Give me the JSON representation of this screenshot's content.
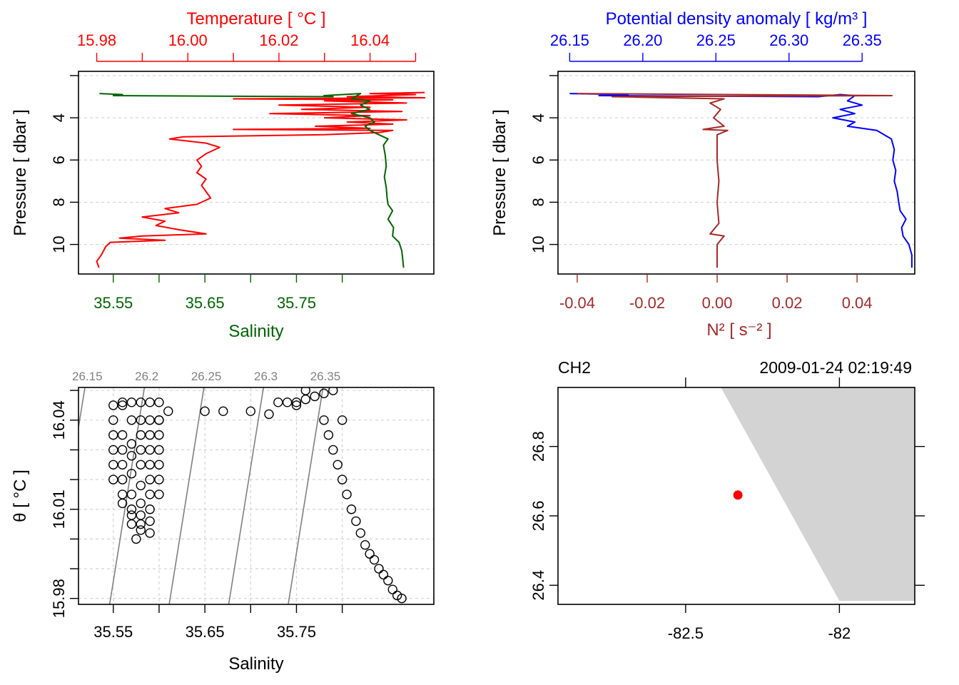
{
  "colors": {
    "temperature": "#ff0000",
    "salinity": "#006400",
    "density": "#0000ff",
    "n2": "#a52a2a",
    "point": "#ff0000",
    "land": "#d3d3d3",
    "isopycnal": "#808080",
    "grid": "#d3d3d3",
    "axis": "#000000"
  },
  "chart_data": [
    {
      "id": "temp-salinity-profile",
      "type": "line",
      "title_top": "Temperature [ °C ]",
      "xlabel_bottom": "Salinity",
      "ylabel": "Pressure [ dbar ]",
      "top_axis": {
        "range": [
          15.976,
          16.054
        ],
        "ticks": [
          15.98,
          15.99,
          16.0,
          16.01,
          16.02,
          16.03,
          16.04,
          16.05
        ],
        "tick_labels": [
          "15.98",
          "",
          "16.00",
          "",
          "16.02",
          "",
          "16.04",
          ""
        ]
      },
      "bottom_axis": {
        "range": [
          35.512,
          35.9
        ],
        "ticks": [
          35.55,
          35.6,
          35.65,
          35.7,
          35.75,
          35.8
        ],
        "tick_labels": [
          "35.55",
          "",
          "35.65",
          "",
          "35.75",
          ""
        ]
      },
      "y_axis": {
        "range": [
          11.4,
          1.8
        ],
        "ticks": [
          2,
          4,
          6,
          8,
          10
        ],
        "tick_labels": [
          "",
          "4",
          "6",
          "8",
          "10"
        ]
      },
      "series": [
        {
          "name": "Temperature",
          "axis": "top",
          "points": [
            [
              16.052,
              2.8
            ],
            [
              16.04,
              2.85
            ],
            [
              16.05,
              2.9
            ],
            [
              16.035,
              3.0
            ],
            [
              16.052,
              3.05
            ],
            [
              16.01,
              3.1
            ],
            [
              16.045,
              3.15
            ],
            [
              16.03,
              3.2
            ],
            [
              16.048,
              3.3
            ],
            [
              16.02,
              3.4
            ],
            [
              16.04,
              3.5
            ],
            [
              16.025,
              3.6
            ],
            [
              16.047,
              3.7
            ],
            [
              16.018,
              3.8
            ],
            [
              16.04,
              3.9
            ],
            [
              16.03,
              4.0
            ],
            [
              16.048,
              4.1
            ],
            [
              16.035,
              4.2
            ],
            [
              16.045,
              4.3
            ],
            [
              16.028,
              4.4
            ],
            [
              16.04,
              4.5
            ],
            [
              16.01,
              4.55
            ],
            [
              16.045,
              4.6
            ],
            [
              16.042,
              4.7
            ],
            [
              16.03,
              4.8
            ],
            [
              15.999,
              4.9
            ],
            [
              15.996,
              5.0
            ],
            [
              16.004,
              5.2
            ],
            [
              16.007,
              5.4
            ],
            [
              16.004,
              5.7
            ],
            [
              16.002,
              6.0
            ],
            [
              16.003,
              6.3
            ],
            [
              16.002,
              6.6
            ],
            [
              16.004,
              6.9
            ],
            [
              16.003,
              7.2
            ],
            [
              16.004,
              7.5
            ],
            [
              16.005,
              7.8
            ],
            [
              16.002,
              8.1
            ],
            [
              15.995,
              8.3
            ],
            [
              15.998,
              8.5
            ],
            [
              15.99,
              8.7
            ],
            [
              15.995,
              8.9
            ],
            [
              15.993,
              9.1
            ],
            [
              15.998,
              9.3
            ],
            [
              16.004,
              9.5
            ],
            [
              15.99,
              9.6
            ],
            [
              15.985,
              9.7
            ],
            [
              15.995,
              9.8
            ],
            [
              15.983,
              9.9
            ],
            [
              15.982,
              10.1
            ],
            [
              15.981,
              10.5
            ],
            [
              15.98,
              10.8
            ],
            [
              15.9805,
              11.1
            ]
          ]
        },
        {
          "name": "Salinity",
          "axis": "bottom",
          "points": [
            [
              35.535,
              2.85
            ],
            [
              35.56,
              2.9
            ],
            [
              35.55,
              2.95
            ],
            [
              35.79,
              3.0
            ],
            [
              35.78,
              2.95
            ],
            [
              35.82,
              2.85
            ],
            [
              35.81,
              3.1
            ],
            [
              35.83,
              3.2
            ],
            [
              35.82,
              3.4
            ],
            [
              35.83,
              3.6
            ],
            [
              35.81,
              3.8
            ],
            [
              35.83,
              4.0
            ],
            [
              35.835,
              4.2
            ],
            [
              35.825,
              4.4
            ],
            [
              35.83,
              4.6
            ],
            [
              35.84,
              4.8
            ],
            [
              35.85,
              5.0
            ],
            [
              35.845,
              5.3
            ],
            [
              35.847,
              5.8
            ],
            [
              35.848,
              6.3
            ],
            [
              35.846,
              6.8
            ],
            [
              35.848,
              7.3
            ],
            [
              35.849,
              7.8
            ],
            [
              35.85,
              8.1
            ],
            [
              35.855,
              8.4
            ],
            [
              35.85,
              8.8
            ],
            [
              35.856,
              9.2
            ],
            [
              35.855,
              9.6
            ],
            [
              35.862,
              9.9
            ],
            [
              35.865,
              10.3
            ],
            [
              35.866,
              10.7
            ],
            [
              35.867,
              11.1
            ]
          ]
        }
      ]
    },
    {
      "id": "density-n2-profile",
      "type": "line",
      "title_top": "Potential density anomaly [ kg/m³ ]",
      "xlabel_bottom": "N² [ s⁻² ]",
      "ylabel": "Pressure [ dbar ]",
      "top_axis": {
        "range": [
          26.142,
          26.386
        ],
        "ticks": [
          26.15,
          26.2,
          26.25,
          26.3,
          26.35
        ],
        "tick_labels": [
          "26.15",
          "26.20",
          "26.25",
          "26.30",
          "26.35"
        ]
      },
      "bottom_axis": {
        "range": [
          -0.0455,
          0.0565
        ],
        "ticks": [
          -0.04,
          -0.02,
          0.0,
          0.02,
          0.04
        ],
        "tick_labels": [
          "-0.04",
          "-0.02",
          "0.00",
          "0.02",
          "0.04"
        ]
      },
      "y_axis": {
        "range": [
          11.4,
          1.8
        ],
        "ticks": [
          2,
          4,
          6,
          8,
          10
        ],
        "tick_labels": [
          "",
          "4",
          "6",
          "8",
          "10"
        ]
      },
      "series": [
        {
          "name": "Potential density anomaly",
          "axis": "top",
          "points": [
            [
              26.15,
              2.85
            ],
            [
              26.19,
              2.9
            ],
            [
              26.17,
              2.95
            ],
            [
              26.32,
              3.0
            ],
            [
              26.335,
              2.9
            ],
            [
              26.345,
              2.95
            ],
            [
              26.34,
              3.2
            ],
            [
              26.35,
              3.4
            ],
            [
              26.335,
              3.6
            ],
            [
              26.345,
              3.8
            ],
            [
              26.33,
              4.0
            ],
            [
              26.345,
              4.2
            ],
            [
              26.34,
              4.4
            ],
            [
              26.36,
              4.6
            ],
            [
              26.37,
              5.0
            ],
            [
              26.372,
              5.5
            ],
            [
              26.371,
              6.0
            ],
            [
              26.373,
              6.5
            ],
            [
              26.372,
              7.0
            ],
            [
              26.374,
              7.5
            ],
            [
              26.375,
              8.0
            ],
            [
              26.376,
              8.4
            ],
            [
              26.38,
              8.8
            ],
            [
              26.377,
              9.2
            ],
            [
              26.378,
              9.6
            ],
            [
              26.382,
              10.0
            ],
            [
              26.384,
              10.5
            ],
            [
              26.384,
              11.1
            ]
          ]
        },
        {
          "name": "N2",
          "axis": "bottom",
          "points": [
            [
              -0.04,
              2.85
            ],
            [
              0.05,
              2.95
            ],
            [
              -0.03,
              3.0
            ],
            [
              0.002,
              3.1
            ],
            [
              -0.002,
              3.3
            ],
            [
              0.001,
              3.6
            ],
            [
              -0.001,
              4.0
            ],
            [
              0.002,
              4.4
            ],
            [
              -0.004,
              4.55
            ],
            [
              0.003,
              4.6
            ],
            [
              0.0,
              4.8
            ],
            [
              0.0,
              6.0
            ],
            [
              0.0005,
              7.0
            ],
            [
              0.0,
              8.0
            ],
            [
              0.0005,
              9.0
            ],
            [
              -0.002,
              9.5
            ],
            [
              0.002,
              9.6
            ],
            [
              0.0,
              10.0
            ],
            [
              0.0,
              11.1
            ]
          ]
        }
      ]
    },
    {
      "id": "ts-diagram",
      "type": "scatter",
      "xlabel": "Salinity",
      "ylabel": "θ [ °C ]",
      "x_axis": {
        "range": [
          35.512,
          35.9
        ],
        "ticks": [
          35.55,
          35.6,
          35.65,
          35.7,
          35.75,
          35.8
        ],
        "tick_labels": [
          "35.55",
          "",
          "35.65",
          "",
          "35.75",
          ""
        ]
      },
      "y_axis": {
        "range": [
          15.978,
          16.051
        ],
        "ticks": [
          15.98,
          15.99,
          16.0,
          16.01,
          16.02,
          16.03,
          16.04,
          16.05
        ],
        "tick_labels": [
          "15.98",
          "",
          "",
          "16.01",
          "",
          "",
          "16.04",
          ""
        ]
      },
      "isopycnals": [
        {
          "label": "26.15",
          "top_salinity": 35.52,
          "bottom_salinity": 35.48
        },
        {
          "label": "26.2",
          "top_salinity": 35.585,
          "bottom_salinity": 35.545
        },
        {
          "label": "26.25",
          "top_salinity": 35.65,
          "bottom_salinity": 35.61
        },
        {
          "label": "26.3",
          "top_salinity": 35.715,
          "bottom_salinity": 35.675
        },
        {
          "label": "26.35",
          "top_salinity": 35.78,
          "bottom_salinity": 35.74
        }
      ],
      "points_x": [
        35.55,
        35.55,
        35.56,
        35.57,
        35.58,
        35.59,
        35.6,
        35.6,
        35.55,
        35.56,
        35.57,
        35.58,
        35.59,
        35.6,
        35.55,
        35.56,
        35.57,
        35.58,
        35.59,
        35.6,
        35.55,
        35.56,
        35.57,
        35.58,
        35.59,
        35.6,
        35.55,
        35.56,
        35.57,
        35.58,
        35.59,
        35.6,
        35.56,
        35.57,
        35.58,
        35.59,
        35.6,
        35.57,
        35.58,
        35.59,
        35.6,
        35.56,
        35.57,
        35.58,
        35.59,
        35.57,
        35.58,
        35.59,
        35.58,
        35.59,
        35.575,
        35.56,
        35.61,
        35.65,
        35.67,
        35.7,
        35.72,
        35.73,
        35.74,
        35.75,
        35.76,
        35.75,
        35.76,
        35.77,
        35.78,
        35.79,
        35.78,
        35.785,
        35.8,
        35.79,
        35.795,
        35.8,
        35.805,
        35.81,
        35.815,
        35.82,
        35.825,
        35.83,
        35.835,
        35.84,
        35.845,
        35.85,
        35.855,
        35.86,
        35.865
      ],
      "points_y": [
        16.04,
        16.045,
        16.046,
        16.046,
        16.046,
        16.046,
        16.046,
        16.04,
        16.035,
        16.035,
        16.04,
        16.04,
        16.04,
        16.04,
        16.03,
        16.03,
        16.032,
        16.035,
        16.035,
        16.035,
        16.025,
        16.025,
        16.028,
        16.03,
        16.03,
        16.03,
        16.02,
        16.02,
        16.022,
        16.025,
        16.025,
        16.025,
        16.015,
        16.015,
        16.018,
        16.02,
        16.02,
        16.01,
        16.012,
        16.015,
        16.015,
        16.012,
        16.008,
        16.008,
        16.01,
        16.005,
        16.005,
        16.006,
        16.003,
        16.002,
        16.0,
        16.045,
        16.043,
        16.043,
        16.043,
        16.043,
        16.042,
        16.046,
        16.046,
        16.046,
        16.05,
        16.045,
        16.047,
        16.048,
        16.049,
        16.05,
        16.04,
        16.035,
        16.04,
        16.03,
        16.025,
        16.02,
        16.015,
        16.01,
        16.006,
        16.002,
        15.998,
        15.995,
        15.993,
        15.99,
        15.988,
        15.986,
        15.983,
        15.981,
        15.98
      ]
    },
    {
      "id": "station-map",
      "type": "scatter",
      "station": "CH2",
      "datetime": "2009-01-24 02:19:49",
      "x_axis": {
        "range": [
          -82.915,
          -81.755
        ],
        "ticks": [
          -82.5,
          -82.0
        ],
        "tick_labels": [
          "-82.5",
          "-82"
        ]
      },
      "y_axis": {
        "range": [
          26.345,
          26.97
        ],
        "ticks": [
          26.4,
          26.6,
          26.8
        ],
        "tick_labels": [
          "26.4",
          "26.6",
          "26.8"
        ]
      },
      "land_polygon": [
        [
          -82.385,
          26.97
        ],
        [
          -81.755,
          26.97
        ],
        [
          -81.755,
          26.355
        ],
        [
          -82.0,
          26.355
        ]
      ],
      "station_point": {
        "longitude": -82.33,
        "latitude": 26.66
      }
    }
  ]
}
